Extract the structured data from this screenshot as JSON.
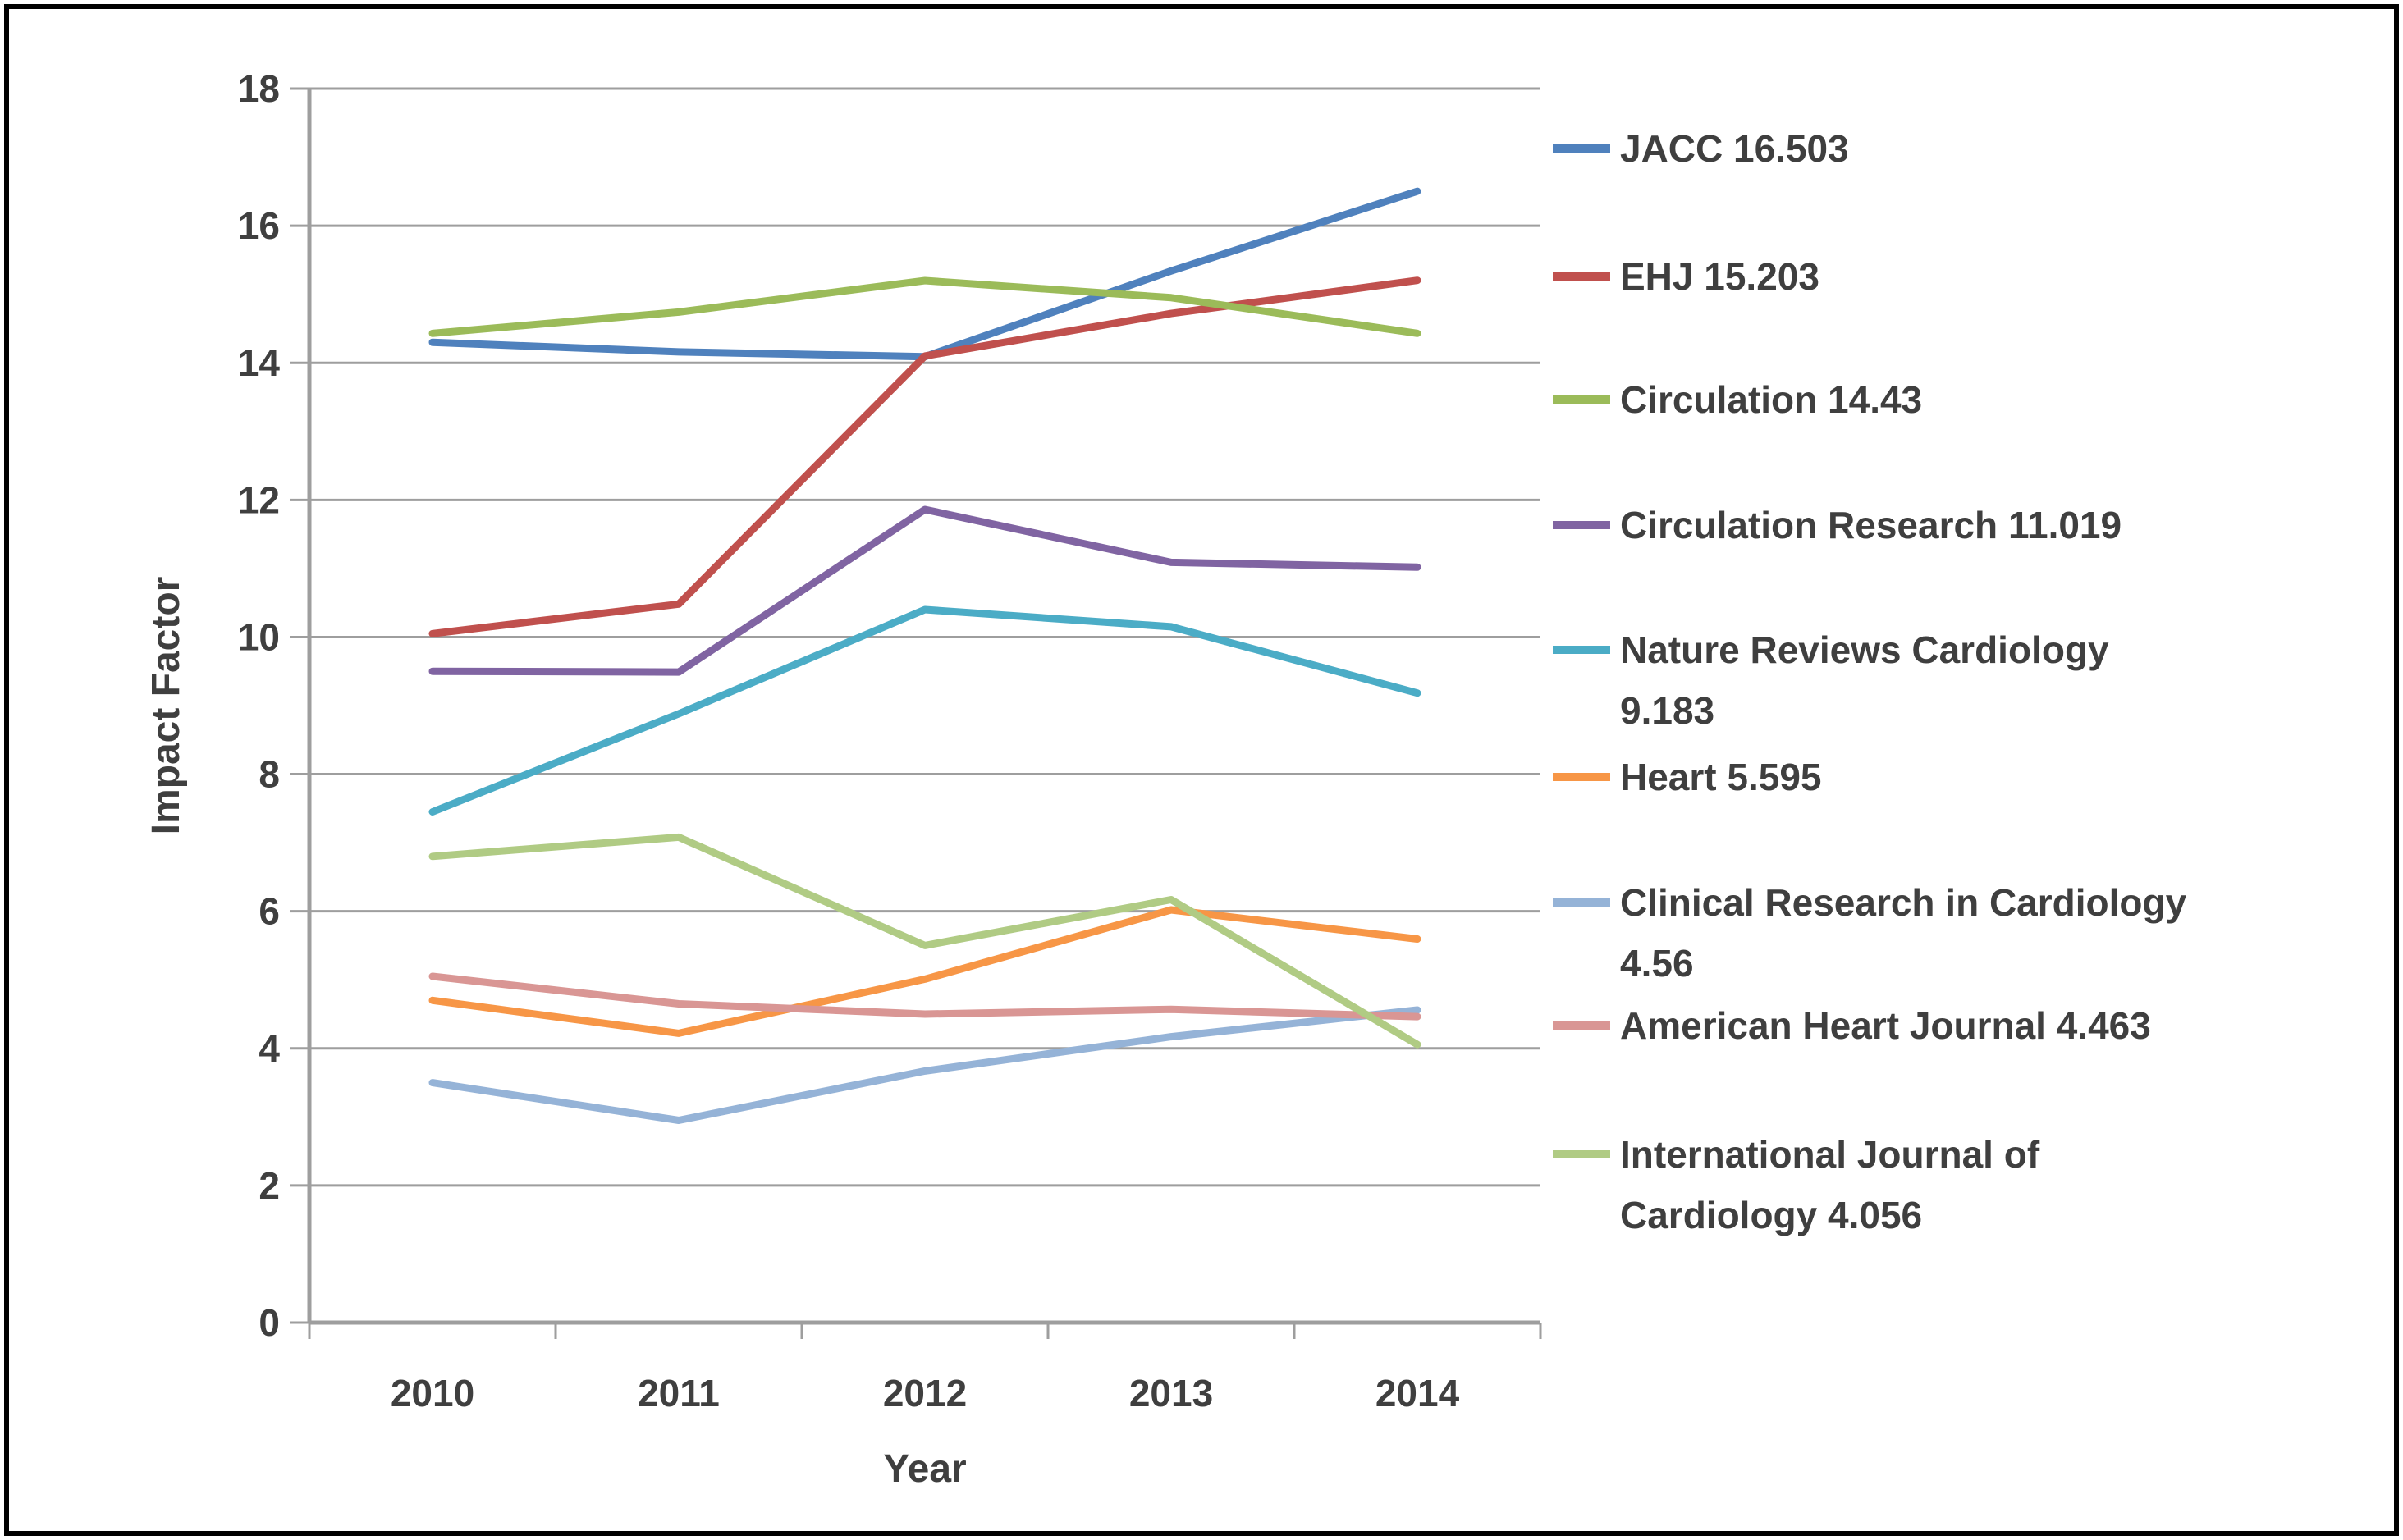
{
  "figure": {
    "background": "#ffffff",
    "border_color": "#000000",
    "text_color": "#3f3f3f",
    "grid_color": "#9e9e9e"
  },
  "chart_data": {
    "type": "line",
    "title": "",
    "xlabel": "Year",
    "ylabel": "Impact Factor",
    "x": [
      2010,
      2011,
      2012,
      2013,
      2014
    ],
    "xtick_labels": [
      "2010",
      "2011",
      "2012",
      "2013",
      "2014"
    ],
    "ylim": [
      0,
      18
    ],
    "ytick_step": 2,
    "ytick_labels": [
      "0",
      "2",
      "4",
      "6",
      "8",
      "10",
      "12",
      "14",
      "16",
      "18"
    ],
    "grid": true,
    "legend_position": "right",
    "series": [
      {
        "name": "JACC",
        "legend_label_lines": [
          "JACC 16.503"
        ],
        "color": "#4F81BD",
        "values": [
          14.3,
          14.16,
          14.09,
          15.34,
          16.503
        ]
      },
      {
        "name": "EHJ",
        "legend_label_lines": [
          "EHJ 15.203"
        ],
        "color": "#C0504D",
        "values": [
          10.05,
          10.48,
          14.1,
          14.72,
          15.203
        ]
      },
      {
        "name": "Circulation",
        "legend_label_lines": [
          "Circulation 14.43"
        ],
        "color": "#9BBB59",
        "values": [
          14.43,
          14.74,
          15.2,
          14.95,
          14.43
        ]
      },
      {
        "name": "Circulation Research",
        "legend_label_lines": [
          "Circulation Research 11.019"
        ],
        "color": "#8064A2",
        "values": [
          9.5,
          9.49,
          11.86,
          11.09,
          11.019
        ]
      },
      {
        "name": "Nature Reviews Cardiology",
        "legend_label_lines": [
          "Nature Reviews Cardiology",
          "9.183"
        ],
        "color": "#4BACC6",
        "values": [
          7.45,
          8.88,
          10.4,
          10.15,
          9.183
        ]
      },
      {
        "name": "Heart",
        "legend_label_lines": [
          "Heart 5.595"
        ],
        "color": "#F79646",
        "values": [
          4.7,
          4.22,
          5.01,
          6.02,
          5.595
        ]
      },
      {
        "name": "Clinical Research in Cardiology",
        "legend_label_lines": [
          "Clinical Research in Cardiology",
          "4.56"
        ],
        "color": "#95B3D7",
        "values": [
          3.5,
          2.95,
          3.67,
          4.17,
          4.56
        ]
      },
      {
        "name": "American Heart Journal",
        "legend_label_lines": [
          "American Heart Journal 4.463"
        ],
        "color": "#D99694",
        "values": [
          5.05,
          4.65,
          4.5,
          4.57,
          4.463
        ]
      },
      {
        "name": "International Journal of Cardiology",
        "legend_label_lines": [
          "International Journal of",
          "Cardiology 4.056"
        ],
        "color": "#B0CB84",
        "values": [
          6.8,
          7.08,
          5.5,
          6.17,
          4.056
        ]
      }
    ]
  }
}
